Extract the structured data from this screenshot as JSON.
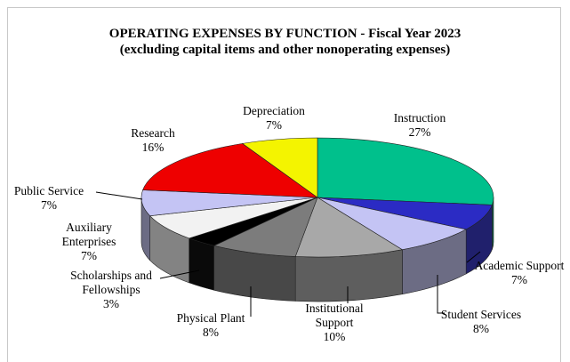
{
  "chart_data": {
    "type": "pie3d",
    "title": "OPERATING EXPENSES BY FUNCTION - Fiscal Year 2023",
    "subtitle": "(excluding capital items and other nonoperating expenses)",
    "categories": [
      "Instruction",
      "Academic Support",
      "Student Services",
      "Institutional Support",
      "Physical Plant",
      "Scholarships and Fellowships",
      "Auxiliary Enterprises",
      "Public Service",
      "Research",
      "Depreciation"
    ],
    "values": [
      27,
      7,
      8,
      10,
      8,
      3,
      7,
      7,
      16,
      7
    ],
    "value_labels": [
      "27%",
      "7%",
      "8%",
      "10%",
      "8%",
      "3%",
      "7%",
      "7%",
      "16%",
      "7%"
    ],
    "colors": [
      "#00c08c",
      "#2b2bc4",
      "#c4c4f4",
      "#a8a8a8",
      "#7c7c7c",
      "#000000",
      "#f2f2f2",
      "#c4c4f4",
      "#ee0000",
      "#f4f400"
    ]
  }
}
